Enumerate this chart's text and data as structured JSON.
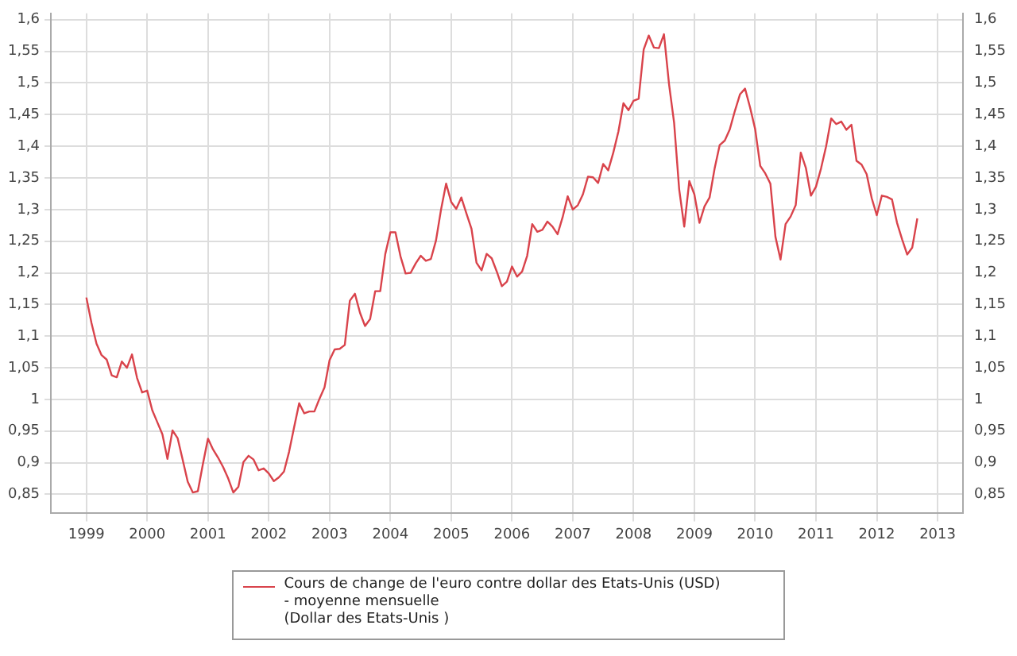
{
  "chart_data": {
    "type": "line",
    "x": [
      "1999-01",
      "1999-02",
      "1999-03",
      "1999-04",
      "1999-05",
      "1999-06",
      "1999-07",
      "1999-08",
      "1999-09",
      "1999-10",
      "1999-11",
      "1999-12",
      "2000-01",
      "2000-02",
      "2000-03",
      "2000-04",
      "2000-05",
      "2000-06",
      "2000-07",
      "2000-08",
      "2000-09",
      "2000-10",
      "2000-11",
      "2000-12",
      "2001-01",
      "2001-02",
      "2001-03",
      "2001-04",
      "2001-05",
      "2001-06",
      "2001-07",
      "2001-08",
      "2001-09",
      "2001-10",
      "2001-11",
      "2001-12",
      "2002-01",
      "2002-02",
      "2002-03",
      "2002-04",
      "2002-05",
      "2002-06",
      "2002-07",
      "2002-08",
      "2002-09",
      "2002-10",
      "2002-11",
      "2002-12",
      "2003-01",
      "2003-02",
      "2003-03",
      "2003-04",
      "2003-05",
      "2003-06",
      "2003-07",
      "2003-08",
      "2003-09",
      "2003-10",
      "2003-11",
      "2003-12",
      "2004-01",
      "2004-02",
      "2004-03",
      "2004-04",
      "2004-05",
      "2004-06",
      "2004-07",
      "2004-08",
      "2004-09",
      "2004-10",
      "2004-11",
      "2004-12",
      "2005-01",
      "2005-02",
      "2005-03",
      "2005-04",
      "2005-05",
      "2005-06",
      "2005-07",
      "2005-08",
      "2005-09",
      "2005-10",
      "2005-11",
      "2005-12",
      "2006-01",
      "2006-02",
      "2006-03",
      "2006-04",
      "2006-05",
      "2006-06",
      "2006-07",
      "2006-08",
      "2006-09",
      "2006-10",
      "2006-11",
      "2006-12",
      "2007-01",
      "2007-02",
      "2007-03",
      "2007-04",
      "2007-05",
      "2007-06",
      "2007-07",
      "2007-08",
      "2007-09",
      "2007-10",
      "2007-11",
      "2007-12",
      "2008-01",
      "2008-02",
      "2008-03",
      "2008-04",
      "2008-05",
      "2008-06",
      "2008-07",
      "2008-08",
      "2008-09",
      "2008-10",
      "2008-11",
      "2008-12",
      "2009-01",
      "2009-02",
      "2009-03",
      "2009-04",
      "2009-05",
      "2009-06",
      "2009-07",
      "2009-08",
      "2009-09",
      "2009-10",
      "2009-11",
      "2009-12",
      "2010-01",
      "2010-02",
      "2010-03",
      "2010-04",
      "2010-05",
      "2010-06",
      "2010-07",
      "2010-08",
      "2010-09",
      "2010-10",
      "2010-11",
      "2010-12",
      "2011-01",
      "2011-02",
      "2011-03",
      "2011-04",
      "2011-05",
      "2011-06",
      "2011-07",
      "2011-08",
      "2011-09",
      "2011-10",
      "2011-11",
      "2011-12",
      "2012-01",
      "2012-02",
      "2012-03",
      "2012-04",
      "2012-05",
      "2012-06",
      "2012-07",
      "2012-08",
      "2012-09"
    ],
    "series": [
      {
        "name": "Cours de change de l'euro contre dollar des Etats-Unis (USD)\n - moyenne mensuelle\n(Dollar des Etats-Unis )",
        "color": "#d9434b",
        "values": [
          1.161,
          1.121,
          1.088,
          1.07,
          1.063,
          1.038,
          1.035,
          1.06,
          1.05,
          1.071,
          1.034,
          1.011,
          1.014,
          0.983,
          0.964,
          0.945,
          0.906,
          0.951,
          0.939,
          0.905,
          0.87,
          0.853,
          0.855,
          0.898,
          0.938,
          0.921,
          0.908,
          0.893,
          0.875,
          0.853,
          0.862,
          0.901,
          0.911,
          0.905,
          0.888,
          0.891,
          0.883,
          0.871,
          0.877,
          0.886,
          0.917,
          0.956,
          0.994,
          0.978,
          0.981,
          0.981,
          1.001,
          1.019,
          1.062,
          1.079,
          1.08,
          1.086,
          1.156,
          1.167,
          1.137,
          1.116,
          1.127,
          1.171,
          1.171,
          1.23,
          1.264,
          1.264,
          1.226,
          1.199,
          1.2,
          1.215,
          1.227,
          1.219,
          1.222,
          1.251,
          1.3,
          1.341,
          1.312,
          1.301,
          1.319,
          1.294,
          1.27,
          1.216,
          1.204,
          1.23,
          1.223,
          1.202,
          1.179,
          1.186,
          1.21,
          1.194,
          1.202,
          1.227,
          1.277,
          1.265,
          1.268,
          1.281,
          1.273,
          1.261,
          1.288,
          1.321,
          1.3,
          1.307,
          1.324,
          1.352,
          1.351,
          1.342,
          1.372,
          1.362,
          1.39,
          1.423,
          1.468,
          1.457,
          1.472,
          1.475,
          1.553,
          1.575,
          1.556,
          1.555,
          1.577,
          1.498,
          1.437,
          1.332,
          1.273,
          1.345,
          1.324,
          1.279,
          1.305,
          1.319,
          1.365,
          1.402,
          1.409,
          1.427,
          1.456,
          1.482,
          1.491,
          1.461,
          1.427,
          1.369,
          1.357,
          1.341,
          1.257,
          1.221,
          1.277,
          1.289,
          1.307,
          1.39,
          1.366,
          1.322,
          1.336,
          1.365,
          1.4,
          1.444,
          1.435,
          1.439,
          1.426,
          1.434,
          1.377,
          1.371,
          1.356,
          1.318,
          1.291,
          1.322,
          1.32,
          1.316,
          1.279,
          1.253,
          1.229,
          1.24,
          1.286
        ]
      }
    ],
    "xlim": [
      "1998-06",
      "2013-06"
    ],
    "xticks": [
      "1999",
      "2000",
      "2001",
      "2002",
      "2003",
      "2004",
      "2005",
      "2006",
      "2007",
      "2008",
      "2009",
      "2010",
      "2011",
      "2012",
      "2013"
    ],
    "ylim": [
      0.82,
      1.61
    ],
    "yticks": [
      {
        "value": 0.85,
        "label": "0,85"
      },
      {
        "value": 0.9,
        "label": "0,9"
      },
      {
        "value": 0.95,
        "label": "0,95"
      },
      {
        "value": 1,
        "label": "1"
      },
      {
        "value": 1.05,
        "label": "1,05"
      },
      {
        "value": 1.1,
        "label": "1,1"
      },
      {
        "value": 1.15,
        "label": "1,15"
      },
      {
        "value": 1.2,
        "label": "1,2"
      },
      {
        "value": 1.25,
        "label": "1,25"
      },
      {
        "value": 1.3,
        "label": "1,3"
      },
      {
        "value": 1.35,
        "label": "1,35"
      },
      {
        "value": 1.4,
        "label": "1,4"
      },
      {
        "value": 1.45,
        "label": "1,45"
      },
      {
        "value": 1.5,
        "label": "1,5"
      },
      {
        "value": 1.55,
        "label": "1,55"
      },
      {
        "value": 1.6,
        "label": "1,6"
      }
    ],
    "y2lim": [
      0.82,
      1.61
    ],
    "y2ticks": [
      {
        "value": 0.85,
        "label": "0,85"
      },
      {
        "value": 0.9,
        "label": "0,9"
      },
      {
        "value": 0.95,
        "label": "0,95"
      },
      {
        "value": 1,
        "label": "1"
      },
      {
        "value": 1.05,
        "label": "1,05"
      },
      {
        "value": 1.1,
        "label": "1,1"
      },
      {
        "value": 1.15,
        "label": "1,15"
      },
      {
        "value": 1.2,
        "label": "1,2"
      },
      {
        "value": 1.25,
        "label": "1,25"
      },
      {
        "value": 1.3,
        "label": "1,3"
      },
      {
        "value": 1.35,
        "label": "1,35"
      },
      {
        "value": 1.4,
        "label": "1,4"
      },
      {
        "value": 1.45,
        "label": "1,45"
      },
      {
        "value": 1.5,
        "label": "1,5"
      },
      {
        "value": 1.55,
        "label": "1,55"
      },
      {
        "value": 1.6,
        "label": "1,6"
      }
    ],
    "grid": true,
    "legend": "bottom",
    "marker": "none",
    "line_style": "solid"
  }
}
